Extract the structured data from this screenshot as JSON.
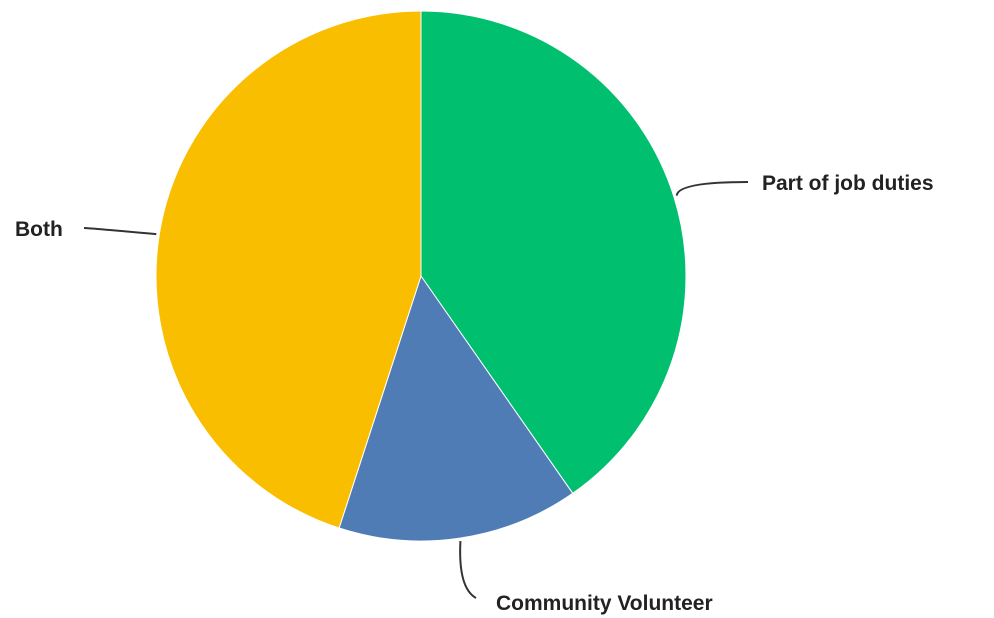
{
  "chart_data": {
    "type": "pie",
    "slices": [
      {
        "label": "Part of job duties",
        "value": 40.3,
        "color": "#00BF6F"
      },
      {
        "label": "Community Volunteer",
        "value": 14.7,
        "color": "#507CB6"
      },
      {
        "label": "Both",
        "value": 45.0,
        "color": "#F9BE00"
      }
    ],
    "start_angle": "12 o'clock",
    "direction": "clockwise"
  }
}
